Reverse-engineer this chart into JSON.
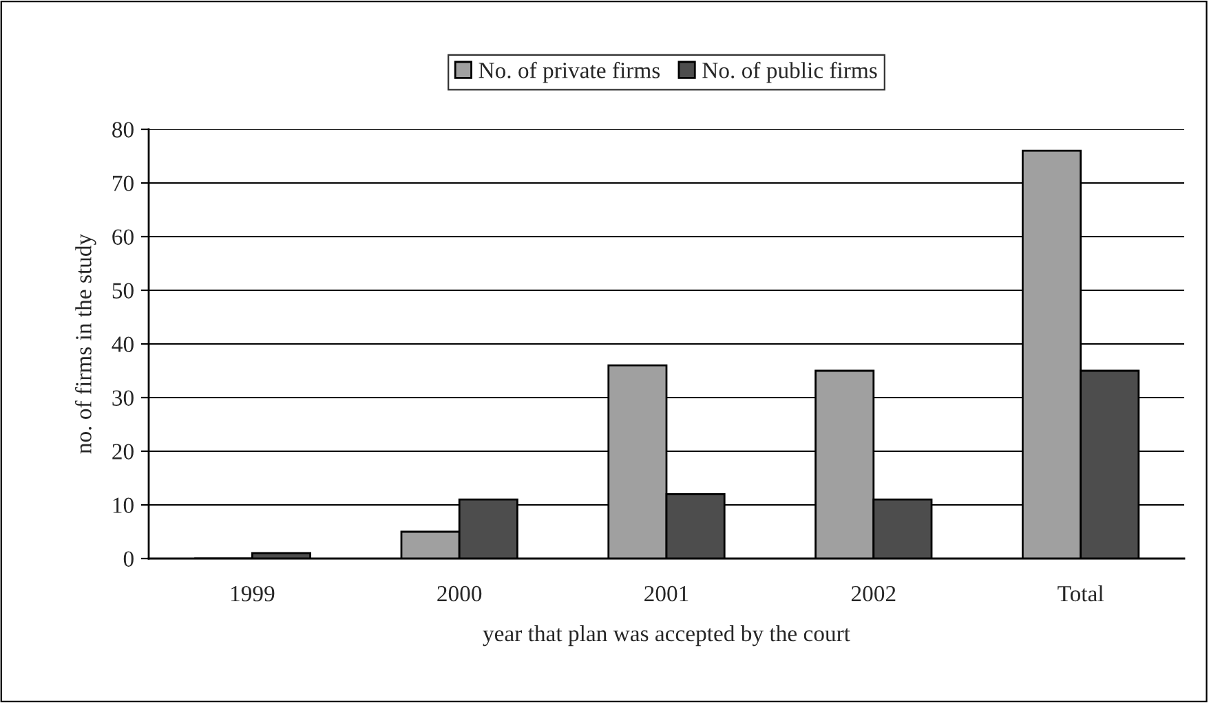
{
  "chart_data": {
    "type": "bar",
    "categories": [
      "1999",
      "2000",
      "2001",
      "2002",
      "Total"
    ],
    "series": [
      {
        "name": "No. of private firms",
        "color": "#a0a0a0",
        "values": [
          0,
          5,
          36,
          35,
          76
        ]
      },
      {
        "name": "No. of public firms",
        "color": "#4d4d4d",
        "values": [
          1,
          11,
          12,
          11,
          35
        ]
      }
    ],
    "xlabel": "year that plan was accepted by the court",
    "ylabel": "no. of firms in the study",
    "ylim": [
      0,
      80
    ],
    "yticks": [
      0,
      10,
      20,
      30,
      40,
      50,
      60,
      70,
      80
    ],
    "grid": "y",
    "legend": "top"
  }
}
